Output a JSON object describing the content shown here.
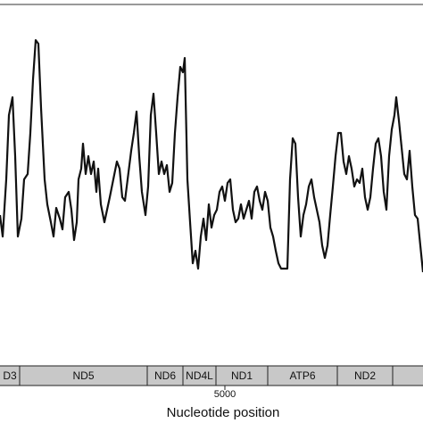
{
  "chart_data": {
    "type": "line",
    "xlabel": "Nucleotide position",
    "xlim": [
      2480,
      7220
    ],
    "xticks": [
      5000
    ],
    "ylim": [
      0,
      100
    ],
    "color": "#111111",
    "x": [
      2480,
      2510,
      2550,
      2580,
      2620,
      2650,
      2680,
      2720,
      2750,
      2790,
      2820,
      2850,
      2880,
      2910,
      2940,
      2980,
      3010,
      3050,
      3080,
      3110,
      3150,
      3180,
      3210,
      3250,
      3280,
      3310,
      3340,
      3360,
      3390,
      3410,
      3440,
      3470,
      3500,
      3530,
      3560,
      3580,
      3610,
      3650,
      3680,
      3710,
      3750,
      3790,
      3820,
      3850,
      3880,
      3910,
      3950,
      3980,
      4010,
      4040,
      4070,
      4110,
      4140,
      4170,
      4200,
      4230,
      4260,
      4290,
      4320,
      4350,
      4380,
      4410,
      4440,
      4470,
      4500,
      4530,
      4550,
      4580,
      4610,
      4640,
      4670,
      4700,
      4730,
      4760,
      4790,
      4820,
      4850,
      4880,
      4910,
      4940,
      4970,
      5000,
      5030,
      5060,
      5090,
      5120,
      5150,
      5180,
      5210,
      5240,
      5270,
      5300,
      5330,
      5360,
      5390,
      5420,
      5450,
      5480,
      5510,
      5540,
      5570,
      5600,
      5630,
      5670,
      5700,
      5730,
      5760,
      5790,
      5820,
      5850,
      5880,
      5910,
      5940,
      5970,
      6000,
      6030,
      6060,
      6090,
      6120,
      6150,
      6180,
      6210,
      6240,
      6270,
      6300,
      6330,
      6360,
      6390,
      6420,
      6450,
      6480,
      6510,
      6540,
      6570,
      6600,
      6630,
      6660,
      6690,
      6720,
      6750,
      6780,
      6810,
      6840,
      6870,
      6900,
      6920,
      6950,
      6980,
      7010,
      7040,
      7070,
      7100,
      7130,
      7160,
      7190,
      7220
    ],
    "values": [
      41,
      35,
      51,
      69,
      74,
      57.5,
      35,
      40,
      51,
      52.5,
      64,
      79,
      90,
      89,
      71,
      51,
      44,
      39,
      35,
      43,
      40,
      37,
      46,
      47.5,
      42.5,
      34,
      39,
      51,
      54,
      61,
      52.5,
      57.5,
      52.5,
      56,
      47.5,
      54,
      44,
      39,
      42.5,
      46,
      51,
      56,
      54,
      46,
      45,
      51,
      59,
      64,
      70,
      57.5,
      47.5,
      41,
      49,
      69,
      75,
      64,
      52.5,
      56,
      52.5,
      55,
      47.5,
      50,
      64,
      74,
      82.5,
      81,
      85,
      51,
      39,
      27.5,
      31,
      26,
      35,
      40,
      34,
      44,
      37.5,
      41,
      42.5,
      47.5,
      49,
      45,
      50,
      51,
      42.5,
      39,
      40,
      44,
      40,
      42.5,
      45,
      40,
      47.5,
      49,
      45,
      42.5,
      47.5,
      45,
      37.5,
      35,
      31,
      27.5,
      26,
      26,
      26,
      51,
      62.5,
      61,
      46,
      35,
      41,
      44,
      49,
      51,
      46,
      42.5,
      39,
      32.5,
      29,
      32.5,
      41,
      49,
      57.5,
      64,
      64,
      56,
      52.5,
      57.5,
      54,
      49,
      51,
      50,
      54,
      46,
      42.5,
      46,
      54,
      61,
      62.5,
      57.5,
      47.5,
      42.5,
      57.5,
      65,
      69,
      74,
      67.5,
      60,
      52.5,
      51,
      59,
      49,
      41,
      40,
      32.5,
      25
    ],
    "gene_color": "#c8c8c8",
    "genes": [
      {
        "name": "D3",
        "start": 2300,
        "end": 2700
      },
      {
        "name": "ND5",
        "start": 2700,
        "end": 4130
      },
      {
        "name": "ND6",
        "start": 4130,
        "end": 4530
      },
      {
        "name": "ND4L",
        "start": 4530,
        "end": 4900
      },
      {
        "name": "ND1",
        "start": 4900,
        "end": 5480
      },
      {
        "name": "ATP6",
        "start": 5480,
        "end": 6260
      },
      {
        "name": "ND2",
        "start": 6260,
        "end": 6880
      },
      {
        "start": 6880,
        "end": 7400
      }
    ]
  }
}
